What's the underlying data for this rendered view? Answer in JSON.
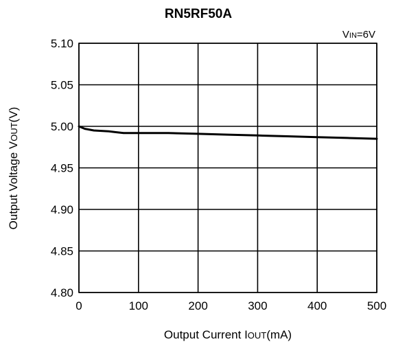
{
  "chart_data": {
    "type": "line",
    "title": "RN5RF50A",
    "annotation": {
      "prefix": "V",
      "sub": "IN",
      "suffix": "=6V"
    },
    "xlabel": {
      "prefix": "Output Current I",
      "sub": "OUT",
      "suffix": "(mA)"
    },
    "ylabel": {
      "prefix": "Output Voltage V",
      "sub": "OUT",
      "suffix": "(V)"
    },
    "xlim": [
      0,
      500
    ],
    "ylim": [
      4.8,
      5.1
    ],
    "xticks": [
      0,
      100,
      200,
      300,
      400,
      500
    ],
    "yticks": [
      4.8,
      4.85,
      4.9,
      4.95,
      5.0,
      5.05,
      5.1
    ],
    "xtick_labels": [
      "0",
      "100",
      "200",
      "300",
      "400",
      "500"
    ],
    "ytick_labels": [
      "4.80",
      "4.85",
      "4.90",
      "4.95",
      "5.00",
      "5.05",
      "5.10"
    ],
    "grid": true,
    "series": [
      {
        "color": "#000000",
        "x": [
          0,
          10,
          25,
          50,
          62,
          75,
          100,
          150,
          200,
          250,
          300,
          350,
          400,
          450,
          500
        ],
        "y": [
          5.0,
          4.997,
          4.995,
          4.994,
          4.993,
          4.992,
          4.992,
          4.992,
          4.991,
          4.99,
          4.989,
          4.988,
          4.987,
          4.986,
          4.985
        ]
      }
    ]
  }
}
